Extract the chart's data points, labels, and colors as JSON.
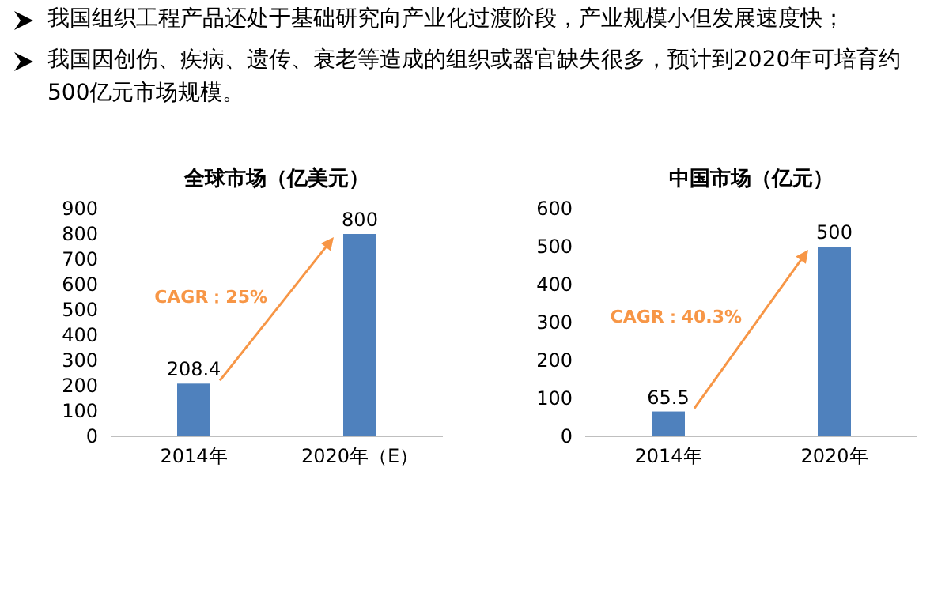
{
  "chart_data": [
    {
      "type": "other",
      "annotations": [
        "我国组织工程产品还处于基础研究向产业化过渡阶段，产业规模小但发展速度快；",
        "我国因创伤、疾病、遗传、衰老等造成的组织或器官缺失很多，预计到2020年可培育约500亿元市场规模。"
      ]
    },
    {
      "type": "bar",
      "title": "全球市场（亿美元）",
      "categories": [
        "2014年",
        "2020年（E）"
      ],
      "values": [
        208.4,
        800
      ],
      "color": "#4f81bd",
      "ylim": [
        0,
        900
      ],
      "yticks": [
        0,
        100,
        200,
        300,
        400,
        500,
        600,
        700,
        800,
        900
      ],
      "data_labels": true,
      "annotations": [
        "CAGR：25%"
      ]
    },
    {
      "type": "bar",
      "title": "中国市场（亿元）",
      "categories": [
        "2014年",
        "2020年"
      ],
      "values": [
        65.5,
        500
      ],
      "color": "#4f81bd",
      "ylim": [
        0,
        600
      ],
      "yticks": [
        0,
        100,
        200,
        300,
        400,
        500,
        600
      ],
      "data_labels": true,
      "annotations": [
        "CAGR：40.3%"
      ]
    }
  ]
}
